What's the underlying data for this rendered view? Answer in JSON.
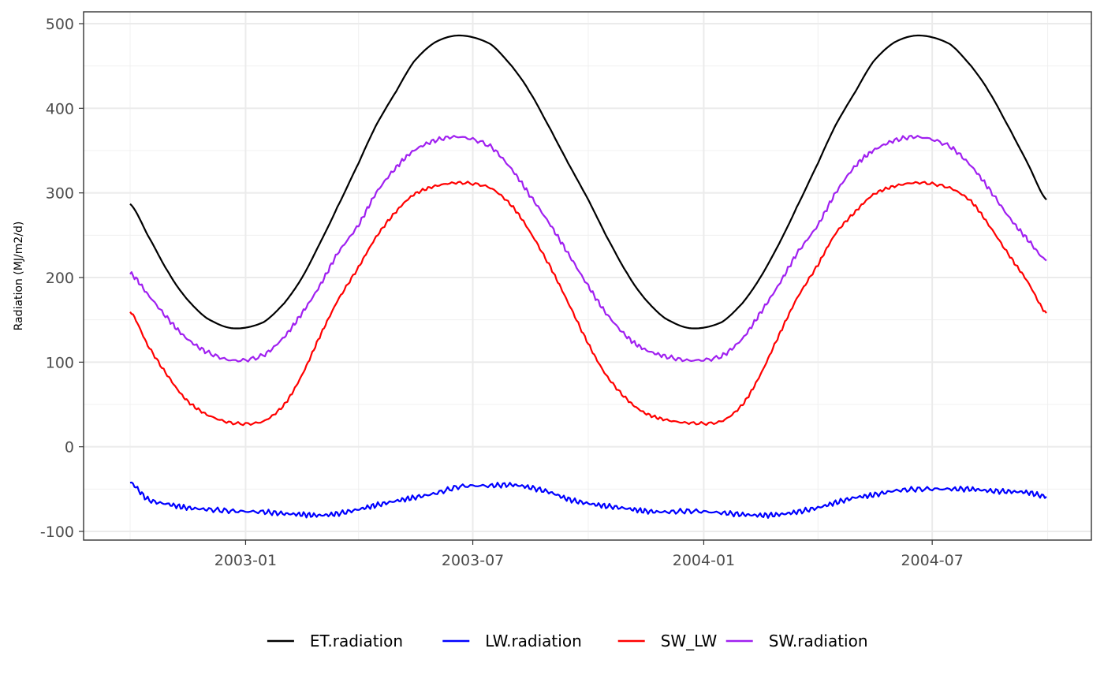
{
  "chart_data": {
    "type": "line",
    "title": "",
    "xlabel": "",
    "ylabel": "Radiation (MJ/m2/d)",
    "xlim": [
      "2002-10-01",
      "2004-09-30"
    ],
    "ylim": [
      -110,
      500
    ],
    "x_ticks": [
      {
        "date": "2003-01-01",
        "label": "2003-01"
      },
      {
        "date": "2003-07-01",
        "label": "2003-07"
      },
      {
        "date": "2004-01-01",
        "label": "2004-01"
      },
      {
        "date": "2004-07-01",
        "label": "2004-07"
      }
    ],
    "y_ticks": [
      {
        "value": 500,
        "label": "500"
      },
      {
        "value": 400,
        "label": "400"
      },
      {
        "value": 300,
        "label": "300"
      },
      {
        "value": 200,
        "label": "200"
      },
      {
        "value": 100,
        "label": "100"
      },
      {
        "value": 0,
        "label": "0"
      },
      {
        "value": -100,
        "label": "-100"
      }
    ],
    "grid": true,
    "legend_position": "bottom",
    "series": [
      {
        "name": "ET.radiation",
        "color": "#000000",
        "x": [
          "2002-10-01",
          "2002-10-15",
          "2002-11-01",
          "2002-11-15",
          "2002-12-01",
          "2002-12-22",
          "2003-01-15",
          "2003-02-01",
          "2003-02-15",
          "2003-03-01",
          "2003-03-15",
          "2003-04-01",
          "2003-04-15",
          "2003-05-01",
          "2003-05-15",
          "2003-06-01",
          "2003-06-21",
          "2003-07-15",
          "2003-08-01",
          "2003-08-15",
          "2003-09-01",
          "2003-09-15",
          "2003-10-01",
          "2003-10-15",
          "2003-11-01",
          "2003-11-15",
          "2003-12-01",
          "2003-12-22",
          "2004-01-15",
          "2004-02-01",
          "2004-02-15",
          "2004-03-01",
          "2004-03-15",
          "2004-04-01",
          "2004-04-15",
          "2004-05-01",
          "2004-05-15",
          "2004-06-01",
          "2004-06-21",
          "2004-07-15",
          "2004-08-01",
          "2004-08-15",
          "2004-09-01",
          "2004-09-15",
          "2004-09-30"
        ],
        "y": [
          287,
          250,
          205,
          175,
          152,
          140,
          147,
          170,
          200,
          240,
          283,
          335,
          380,
          420,
          455,
          478,
          486,
          476,
          450,
          420,
          375,
          335,
          292,
          250,
          205,
          175,
          152,
          140,
          147,
          170,
          200,
          240,
          283,
          335,
          380,
          420,
          455,
          478,
          486,
          476,
          450,
          420,
          375,
          335,
          292
        ]
      },
      {
        "name": "SW.radiation",
        "color": "#a020f0",
        "x": [
          "2002-10-01",
          "2002-10-15",
          "2002-11-01",
          "2002-11-15",
          "2002-12-01",
          "2002-12-22",
          "2003-01-15",
          "2003-02-01",
          "2003-02-15",
          "2003-03-01",
          "2003-03-15",
          "2003-04-01",
          "2003-04-15",
          "2003-05-01",
          "2003-05-15",
          "2003-06-01",
          "2003-06-21",
          "2003-07-15",
          "2003-08-01",
          "2003-08-15",
          "2003-09-01",
          "2003-09-15",
          "2003-10-01",
          "2003-10-15",
          "2003-11-01",
          "2003-11-15",
          "2003-12-01",
          "2003-12-22",
          "2004-01-15",
          "2004-02-01",
          "2004-02-15",
          "2004-03-01",
          "2004-03-15",
          "2004-04-01",
          "2004-04-15",
          "2004-05-01",
          "2004-05-15",
          "2004-06-01",
          "2004-06-21",
          "2004-07-15",
          "2004-08-01",
          "2004-08-15",
          "2004-09-01",
          "2004-09-15",
          "2004-09-30"
        ],
        "y": [
          205,
          180,
          150,
          128,
          112,
          102,
          108,
          130,
          158,
          190,
          228,
          262,
          300,
          330,
          350,
          362,
          366,
          355,
          328,
          298,
          262,
          228,
          190,
          158,
          130,
          115,
          107,
          102,
          107,
          128,
          158,
          192,
          228,
          262,
          300,
          332,
          350,
          362,
          366,
          355,
          332,
          305,
          270,
          245,
          220
        ]
      },
      {
        "name": "SW_LW",
        "color": "#ff0000",
        "x": [
          "2002-10-01",
          "2002-10-15",
          "2002-11-01",
          "2002-11-15",
          "2002-12-01",
          "2002-12-22",
          "2003-01-15",
          "2003-02-01",
          "2003-02-15",
          "2003-03-01",
          "2003-03-15",
          "2003-04-01",
          "2003-04-15",
          "2003-05-01",
          "2003-05-15",
          "2003-06-01",
          "2003-06-21",
          "2003-07-15",
          "2003-08-01",
          "2003-08-15",
          "2003-09-01",
          "2003-09-15",
          "2003-10-01",
          "2003-10-15",
          "2003-11-01",
          "2003-11-15",
          "2003-12-01",
          "2003-12-22",
          "2004-01-15",
          "2004-02-01",
          "2004-02-15",
          "2004-03-01",
          "2004-03-15",
          "2004-04-01",
          "2004-04-15",
          "2004-05-01",
          "2004-05-15",
          "2004-06-01",
          "2004-06-21",
          "2004-07-15",
          "2004-08-01",
          "2004-08-15",
          "2004-09-01",
          "2004-09-15",
          "2004-09-30"
        ],
        "y": [
          160,
          120,
          82,
          55,
          38,
          28,
          30,
          50,
          85,
          130,
          172,
          212,
          248,
          278,
          298,
          308,
          312,
          306,
          285,
          255,
          212,
          170,
          122,
          85,
          56,
          40,
          32,
          28,
          30,
          50,
          85,
          132,
          175,
          215,
          252,
          278,
          298,
          308,
          312,
          306,
          290,
          262,
          225,
          195,
          158
        ]
      },
      {
        "name": "LW.radiation",
        "color": "#0000ff",
        "x": [
          "2002-10-01",
          "2002-10-15",
          "2002-11-01",
          "2002-11-15",
          "2002-12-01",
          "2002-12-22",
          "2003-01-15",
          "2003-02-01",
          "2003-02-15",
          "2003-03-01",
          "2003-03-15",
          "2003-04-01",
          "2003-04-15",
          "2003-05-01",
          "2003-05-15",
          "2003-06-01",
          "2003-06-21",
          "2003-07-15",
          "2003-08-01",
          "2003-08-15",
          "2003-09-01",
          "2003-09-15",
          "2003-10-01",
          "2003-10-15",
          "2003-11-01",
          "2003-11-15",
          "2003-12-01",
          "2003-12-22",
          "2004-01-15",
          "2004-02-01",
          "2004-02-15",
          "2004-03-01",
          "2004-03-15",
          "2004-04-01",
          "2004-04-15",
          "2004-05-01",
          "2004-05-15",
          "2004-06-01",
          "2004-06-21",
          "2004-07-15",
          "2004-08-01",
          "2004-08-15",
          "2004-09-01",
          "2004-09-15",
          "2004-09-30"
        ],
        "y": [
          -42,
          -62,
          -68,
          -72,
          -74,
          -76,
          -77,
          -79,
          -80,
          -81,
          -79,
          -74,
          -69,
          -64,
          -60,
          -55,
          -47,
          -46,
          -45,
          -48,
          -54,
          -62,
          -67,
          -70,
          -73,
          -76,
          -77,
          -76,
          -78,
          -80,
          -81,
          -80,
          -77,
          -72,
          -66,
          -60,
          -57,
          -52,
          -50,
          -50,
          -50,
          -52,
          -53,
          -54,
          -59
        ]
      }
    ]
  }
}
